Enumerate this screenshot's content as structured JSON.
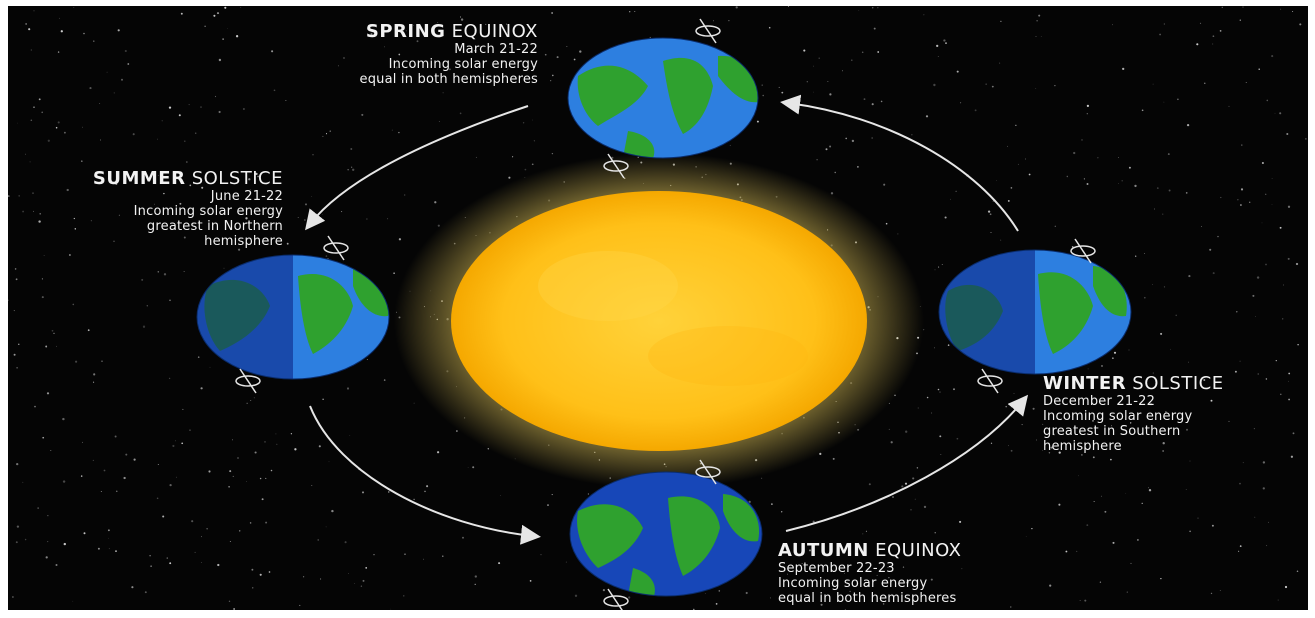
{
  "diagram": {
    "center": {
      "kind": "sun"
    },
    "seasons": [
      {
        "id": "spring",
        "name_bold": "SPRING",
        "name_light": "EQUINOX",
        "date": "March 21-22",
        "line1": "Incoming solar energy",
        "line2": "equal in both hemispheres"
      },
      {
        "id": "summer",
        "name_bold": "SUMMER",
        "name_light": "SOLSTICE",
        "date": "June 21-22",
        "line1": "Incoming solar energy",
        "line2": "greatest in Northern",
        "line3": "hemisphere"
      },
      {
        "id": "winter",
        "name_bold": "WINTER",
        "name_light": "SOLSTICE",
        "date": "December 21-22",
        "line1": "Incoming solar energy",
        "line2": "greatest in Southern",
        "line3": "hemisphere"
      },
      {
        "id": "autumn",
        "name_bold": "AUTUMN",
        "name_light": "EQUINOX",
        "date": "September 22-23",
        "line1": "Incoming solar energy",
        "line2": "equal in both hemispheres"
      }
    ],
    "colors": {
      "space": "#050505",
      "sun_core": "#ffc21a",
      "sun_glow": "#ffe066",
      "ocean_day": "#1f6fd6",
      "ocean_night": "#0d3aa8",
      "land": "#2fa12f",
      "arrow": "#e6e6e6",
      "text": "#f2f2f2"
    }
  }
}
